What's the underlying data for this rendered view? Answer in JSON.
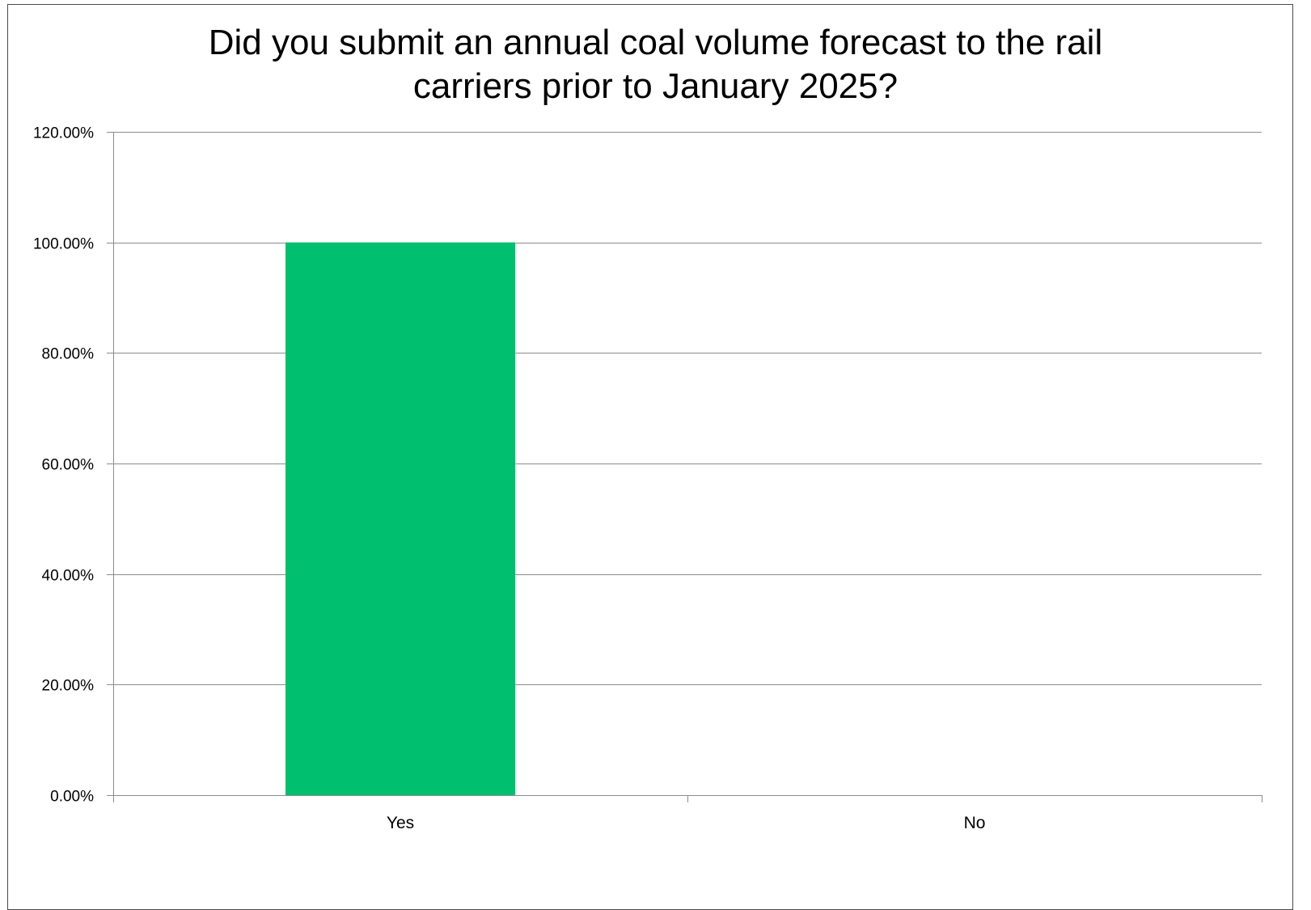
{
  "chart_data": {
    "type": "bar",
    "title_lines": [
      "Did you submit an annual coal volume forecast to the rail",
      "carriers prior to January 2025?"
    ],
    "categories": [
      "Yes",
      "No"
    ],
    "values": [
      100,
      0
    ],
    "ylim": [
      0,
      120
    ],
    "yticks": [
      0,
      20,
      40,
      60,
      80,
      100,
      120
    ],
    "ytick_labels": [
      "0.00%",
      "20.00%",
      "40.00%",
      "60.00%",
      "80.00%",
      "100.00%",
      "120.00%"
    ],
    "grid": true,
    "legend": "none",
    "bar_color": "#00BF6F",
    "gridline_color": "#8c8c8c"
  }
}
